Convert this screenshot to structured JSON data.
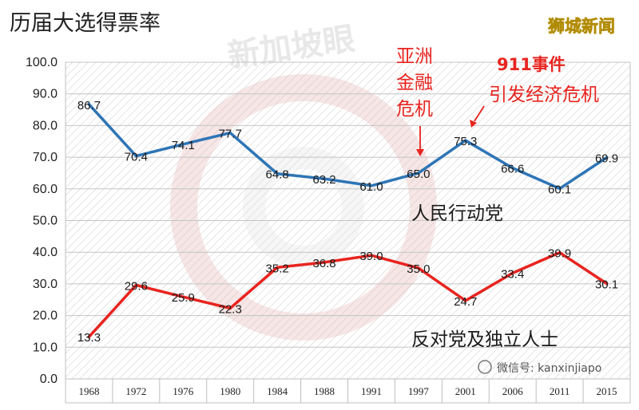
{
  "header": {
    "title": "历届大选得票率",
    "brand": "狮城新闻",
    "watermark": "新加坡眼",
    "wechat": "微信号: kanxinjiapo"
  },
  "annotations": {
    "crisis_1997": [
      "亚洲",
      "金融",
      "危机"
    ],
    "event_2001_line1": "911事件",
    "event_2001_line2": "引发经济危机"
  },
  "colors": {
    "pap": "#2e75b6",
    "opposition": "#e8241f",
    "annotation": "#e8241f"
  },
  "chart_data": {
    "type": "line",
    "title": "历届大选得票率",
    "categories": [
      "1968",
      "1972",
      "1976",
      "1980",
      "1984",
      "1988",
      "1991",
      "1997",
      "2001",
      "2006",
      "2011",
      "2015"
    ],
    "ylim": [
      0,
      100
    ],
    "yticks": [
      "0.0",
      "10.0",
      "20.0",
      "30.0",
      "40.0",
      "50.0",
      "60.0",
      "70.0",
      "80.0",
      "90.0",
      "100.0"
    ],
    "grid": true,
    "series": [
      {
        "name": "人民行动党",
        "color": "#2e75b6",
        "values": [
          86.7,
          70.4,
          74.1,
          77.7,
          64.8,
          63.2,
          61.0,
          65.0,
          75.3,
          66.6,
          60.1,
          69.9
        ],
        "labels": [
          "86.7",
          "70.4",
          "74.1",
          "77.7",
          "64.8",
          "63.2",
          "61.0",
          "65.0",
          "75.3",
          "66.6",
          "60.1",
          "69.9"
        ]
      },
      {
        "name": "反对党及独立人士",
        "color": "#e8241f",
        "values": [
          13.3,
          29.6,
          25.9,
          22.3,
          35.2,
          36.8,
          39.0,
          35.0,
          24.7,
          33.4,
          39.9,
          30.1
        ],
        "labels": [
          "13.3",
          "29.6",
          "25.9",
          "22.3",
          "35.2",
          "36.8",
          "39.0",
          "35.0",
          "24.7",
          "33.4",
          "39.9",
          "30.1"
        ]
      }
    ]
  }
}
